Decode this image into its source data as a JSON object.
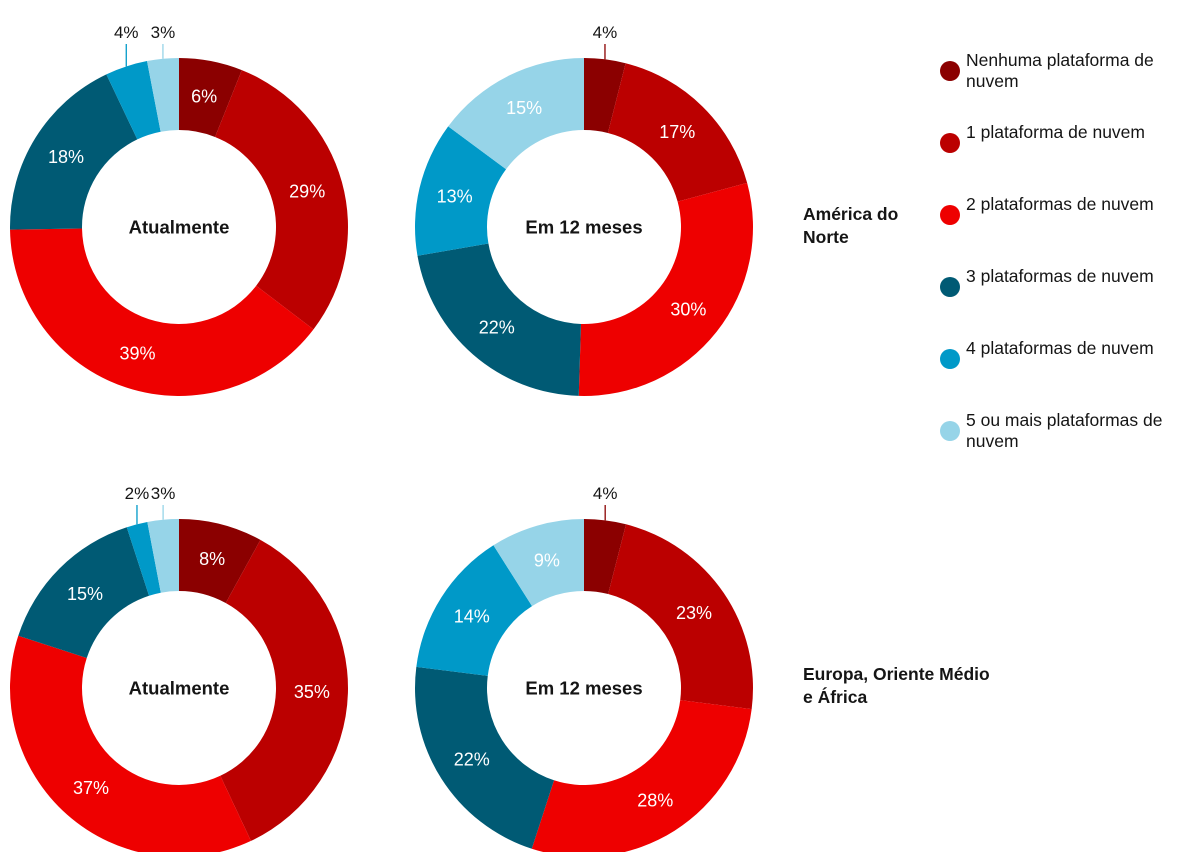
{
  "colors": [
    "#8b0000",
    "#bb0000",
    "#ee0000",
    "#005a74",
    "#0099c8",
    "#96d4e8"
  ],
  "legend": [
    {
      "label": "Nenhuma plataforma de nuvem",
      "color": "#8b0000"
    },
    {
      "label": "1 plataforma de nuvem",
      "color": "#bb0000"
    },
    {
      "label": "2 plataformas de nuvem",
      "color": "#ee0000"
    },
    {
      "label": "3 plataformas de nuvem",
      "color": "#005a74"
    },
    {
      "label": "4 plataformas de nuvem",
      "color": "#0099c8"
    },
    {
      "label": "5 ou mais plataformas de nuvem",
      "color": "#96d4e8"
    }
  ],
  "regions": {
    "north_america": "América do Norte",
    "emea": "Europa, Oriente Médio e África"
  },
  "chart_data": [
    {
      "type": "pie",
      "region": "América do Norte",
      "center_label": "Atualmente",
      "categories": [
        "Nenhuma plataforma de nuvem",
        "1 plataforma de nuvem",
        "2 plataformas de nuvem",
        "3 plataformas de nuvem",
        "4 plataformas de nuvem",
        "5 ou mais plataformas de nuvem"
      ],
      "values": [
        6,
        29,
        39,
        18,
        4,
        3
      ],
      "labels": [
        "6%",
        "29%",
        "39%",
        "18%",
        "4%",
        "3%"
      ]
    },
    {
      "type": "pie",
      "region": "América do Norte",
      "center_label": "Em 12 meses",
      "categories": [
        "Nenhuma plataforma de nuvem",
        "1 plataforma de nuvem",
        "2 plataformas de nuvem",
        "3 plataformas de nuvem",
        "4 plataformas de nuvem",
        "5 ou mais plataformas de nuvem"
      ],
      "values": [
        4,
        17,
        30,
        22,
        13,
        15
      ],
      "labels": [
        "4%",
        "17%",
        "30%",
        "22%",
        "13%",
        "15%"
      ]
    },
    {
      "type": "pie",
      "region": "Europa, Oriente Médio e África",
      "center_label": "Atualmente",
      "categories": [
        "Nenhuma plataforma de nuvem",
        "1 plataforma de nuvem",
        "2 plataformas de nuvem",
        "3 plataformas de nuvem",
        "4 plataformas de nuvem",
        "5 ou mais plataformas de nuvem"
      ],
      "values": [
        8,
        35,
        37,
        15,
        2,
        3
      ],
      "labels": [
        "8%",
        "35%",
        "37%",
        "15%",
        "2%",
        "3%"
      ]
    },
    {
      "type": "pie",
      "region": "Europa, Oriente Médio e África",
      "center_label": "Em 12 meses",
      "categories": [
        "Nenhuma plataforma de nuvem",
        "1 plataforma de nuvem",
        "2 plataformas de nuvem",
        "3 plataformas de nuvem",
        "4 plataformas de nuvem",
        "5 ou mais plataformas de nuvem"
      ],
      "values": [
        4,
        23,
        28,
        22,
        14,
        9
      ],
      "labels": [
        "4%",
        "23%",
        "28%",
        "22%",
        "14%",
        "9%"
      ]
    }
  ]
}
